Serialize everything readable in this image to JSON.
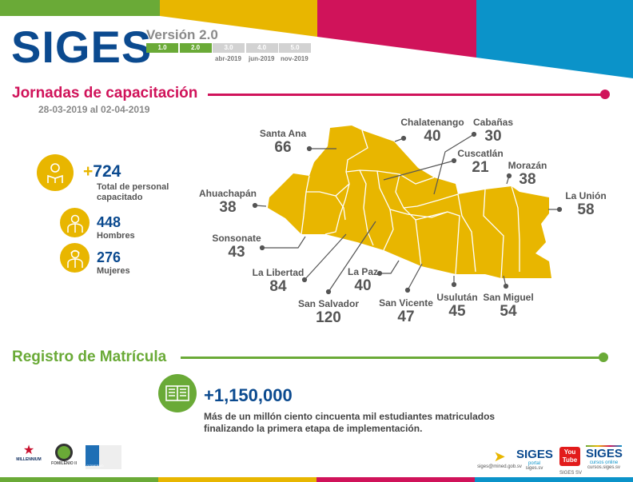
{
  "colors": {
    "green": "#6aaa37",
    "yellow": "#e8b600",
    "magenta": "#d0135a",
    "blue": "#0b93c9",
    "navy": "#0b4a8f"
  },
  "header": {
    "logo": "SIGES",
    "version_title": "Versión 2.0",
    "versions": [
      {
        "label": "1.0",
        "active": true
      },
      {
        "label": "2.0",
        "active": true
      },
      {
        "label": "3.0",
        "active": false
      },
      {
        "label": "4.0",
        "active": false
      },
      {
        "label": "5.0",
        "active": false
      }
    ],
    "version_dates": [
      "abr-2019",
      "jun-2019",
      "nov-2019"
    ]
  },
  "training": {
    "title": "Jornadas de capacitación",
    "date_range": "28-03-2019 al 02-04-2019",
    "total": {
      "prefix": "+",
      "value": "724",
      "label_line1": "Total de personal",
      "label_line2": "capacitado"
    },
    "men": {
      "value": "448",
      "label": "Hombres"
    },
    "women": {
      "value": "276",
      "label": "Mujeres"
    },
    "departments": [
      {
        "name": "Santa Ana",
        "value": "66"
      },
      {
        "name": "Chalatenango",
        "value": "40"
      },
      {
        "name": "Cabañas",
        "value": "30"
      },
      {
        "name": "Cuscatlán",
        "value": "21"
      },
      {
        "name": "Morazán",
        "value": "38"
      },
      {
        "name": "La Unión",
        "value": "58"
      },
      {
        "name": "Ahuachapán",
        "value": "38"
      },
      {
        "name": "Sonsonate",
        "value": "43"
      },
      {
        "name": "La Libertad",
        "value": "84"
      },
      {
        "name": "San Salvador",
        "value": "120"
      },
      {
        "name": "La Paz",
        "value": "40"
      },
      {
        "name": "San Vicente",
        "value": "47"
      },
      {
        "name": "Usulután",
        "value": "45"
      },
      {
        "name": "San Miguel",
        "value": "54"
      }
    ]
  },
  "enrollment": {
    "title": "Registro de Matrícula",
    "value": "+1,150,000",
    "desc_line1": "Más de un millón ciento cincuenta mil estudiantes matriculados",
    "desc_line2": "finalizando la primera etapa de implementación."
  },
  "footer": {
    "partners": [
      "MILLENNIUM",
      "FOMILENIO II",
      "GOBIERNO"
    ],
    "links": [
      {
        "title": "",
        "caption": "siges@mined.gob.sv",
        "icon": "paper-plane-icon"
      },
      {
        "title": "SIGES",
        "sub": "portal",
        "caption": "siges.sv"
      },
      {
        "title": "You Tube",
        "caption": "SIGES SV"
      },
      {
        "title": "SIGES",
        "sub": "cursos online",
        "caption": "cursos.siges.sv"
      }
    ]
  }
}
